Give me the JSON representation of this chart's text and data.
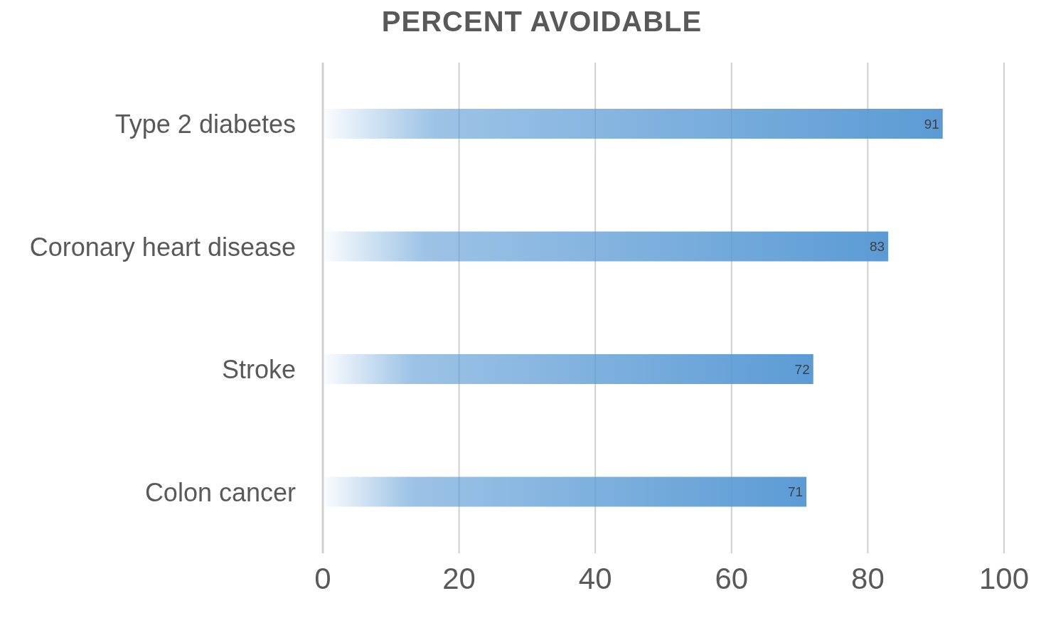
{
  "chart_data": {
    "type": "bar",
    "orientation": "horizontal",
    "title": "PERCENT AVOIDABLE",
    "categories": [
      "Type 2 diabetes",
      "Coronary heart disease",
      "Stroke",
      "Colon cancer"
    ],
    "values": [
      91,
      83,
      72,
      71
    ],
    "color": "#5b9bd5",
    "xlim": [
      0,
      100
    ],
    "xticks": [
      0,
      20,
      40,
      60,
      80,
      100
    ],
    "grid": "x",
    "data_labels": true
  }
}
